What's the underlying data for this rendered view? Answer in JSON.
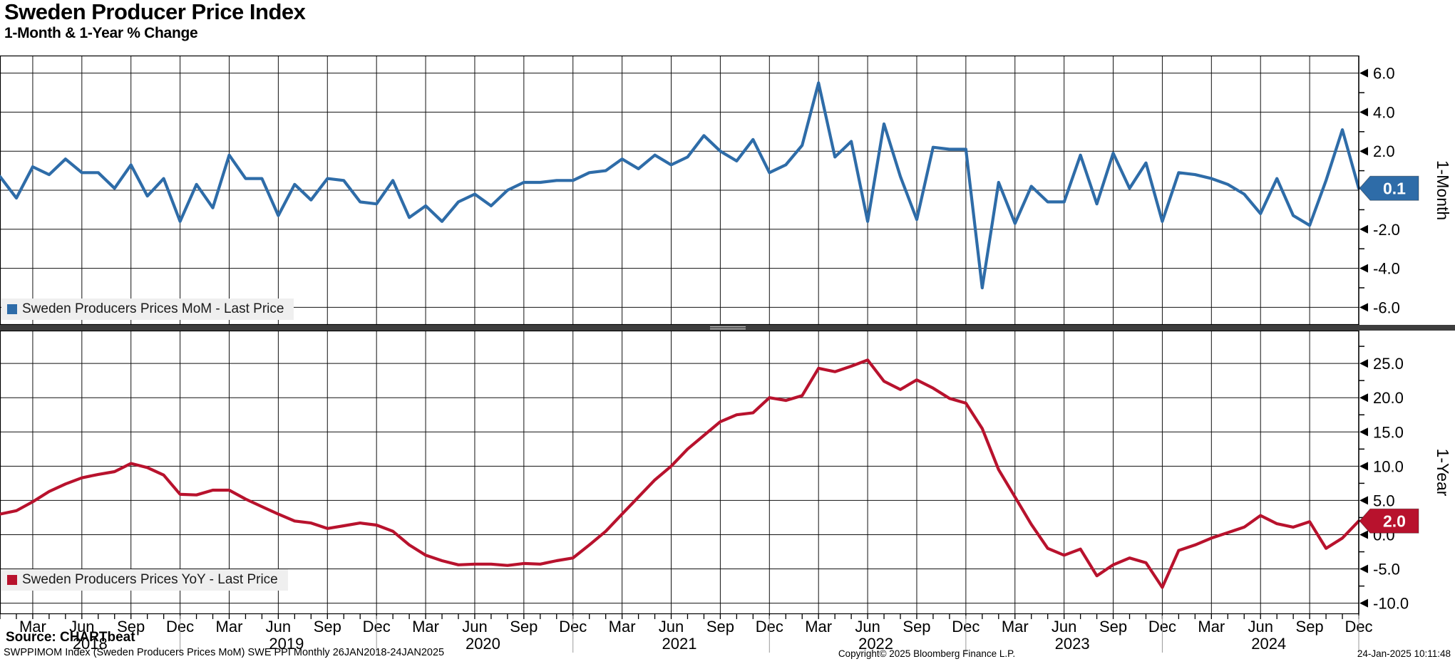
{
  "header": {
    "title": "Sweden Producer Price Index",
    "subtitle": "1-Month & 1-Year % Change"
  },
  "chart_data": [
    {
      "type": "line",
      "panel": "top",
      "title": "Sweden Producers Prices MoM",
      "ylabel": "1-Month",
      "x_start": "Jan 2018",
      "x_end": "Dec 2024",
      "frequency": "monthly",
      "ylim": [
        -6.9,
        6.9
      ],
      "grid_values": [
        6,
        4,
        2,
        0,
        -2,
        -4,
        -6
      ],
      "ytick_labels": [
        "6.0",
        "4.0",
        "2.0",
        "-2.0",
        "-4.0",
        "-6.0"
      ],
      "ytick_values": [
        6,
        4,
        2,
        -2,
        -4,
        -6
      ],
      "minor_step": 1.0,
      "last_price": "0.1",
      "series": [
        {
          "name": "Sweden Producers Prices MoM - Last Price",
          "color": "#2e6ca8",
          "values": [
            0.7,
            -0.4,
            1.2,
            0.8,
            1.6,
            0.9,
            0.9,
            0.1,
            1.3,
            -0.3,
            0.6,
            -1.6,
            0.3,
            -0.9,
            1.8,
            0.6,
            0.6,
            -1.3,
            0.3,
            -0.5,
            0.6,
            0.5,
            -0.6,
            -0.7,
            0.5,
            -1.4,
            -0.8,
            -1.6,
            -0.6,
            -0.2,
            -0.8,
            0.0,
            0.4,
            0.4,
            0.5,
            0.5,
            0.9,
            1.0,
            1.6,
            1.1,
            1.8,
            1.3,
            1.7,
            2.8,
            2.0,
            1.5,
            2.6,
            0.9,
            1.3,
            2.3,
            5.5,
            1.7,
            2.5,
            -1.6,
            3.4,
            0.7,
            -1.5,
            2.2,
            2.1,
            2.1,
            -5.0,
            0.4,
            -1.7,
            0.2,
            -0.6,
            -0.6,
            1.8,
            -0.7,
            1.9,
            0.1,
            1.4,
            -1.6,
            0.9,
            0.8,
            0.6,
            0.3,
            -0.2,
            -1.2,
            0.6,
            -1.3,
            -1.8,
            0.5,
            3.1,
            0.1
          ]
        }
      ]
    },
    {
      "type": "line",
      "panel": "bottom",
      "title": "Sweden Producers Prices YoY",
      "ylabel": "1-Year",
      "x_start": "Jan 2018",
      "x_end": "Dec 2024",
      "frequency": "monthly",
      "ylim": [
        -11.6,
        29.8
      ],
      "grid_values": [
        25,
        20,
        15,
        10,
        5,
        0,
        -5,
        -10
      ],
      "ytick_labels": [
        "25.0",
        "20.0",
        "15.0",
        "10.0",
        "5.0",
        "0.0",
        "-5.0",
        "-10.0"
      ],
      "ytick_values": [
        25,
        20,
        15,
        10,
        5,
        0,
        -5,
        -10
      ],
      "minor_step": 2.5,
      "last_price": "2.0",
      "series": [
        {
          "name": "Sweden Producers Prices YoY - Last Price",
          "color": "#b8122d",
          "values": [
            3.0,
            3.5,
            4.8,
            6.3,
            7.4,
            8.3,
            8.8,
            9.2,
            10.4,
            9.8,
            8.7,
            5.9,
            5.8,
            6.5,
            6.5,
            5.2,
            4.1,
            3.0,
            2.0,
            1.7,
            0.9,
            1.3,
            1.7,
            1.4,
            0.5,
            -1.5,
            -3.0,
            -3.8,
            -4.4,
            -4.3,
            -4.3,
            -4.5,
            -4.2,
            -4.3,
            -3.8,
            -3.4,
            -1.5,
            0.5,
            3.0,
            5.5,
            8.0,
            10.0,
            12.5,
            14.5,
            16.5,
            17.5,
            17.8,
            20.0,
            19.6,
            20.3,
            24.3,
            23.8,
            24.6,
            25.5,
            22.4,
            21.2,
            22.6,
            21.4,
            19.9,
            19.2,
            15.5,
            9.5,
            5.5,
            1.5,
            -2.0,
            -3.0,
            -2.1,
            -6.0,
            -4.4,
            -3.4,
            -4.1,
            -7.7,
            -2.3,
            -1.5,
            -0.5,
            0.3,
            1.1,
            2.8,
            1.6,
            1.1,
            1.9,
            -2.0,
            -0.5,
            2.0
          ]
        }
      ]
    }
  ],
  "xaxis": {
    "quarter_labels": [
      "Mar",
      "Jun",
      "Sep",
      "Dec"
    ],
    "years": [
      "2018",
      "2019",
      "2020",
      "2021",
      "2022",
      "2023",
      "2024"
    ]
  },
  "legends": [
    {
      "label": "Sweden Producers Prices MoM - Last Price",
      "color": "#2e6ca8"
    },
    {
      "label": "Sweden Producers Prices YoY - Last Price",
      "color": "#b8122d"
    }
  ],
  "footer": {
    "source": "Source: CHARTbeat",
    "terminal_line": "SWPPIMOM Index (Sweden Producers Prices MoM) SWE PPI  Monthly 26JAN2018-24JAN2025",
    "copyright": "Copyright© 2025 Bloomberg Finance L.P.",
    "timestamp": "24-Jan-2025 10:11:48"
  }
}
